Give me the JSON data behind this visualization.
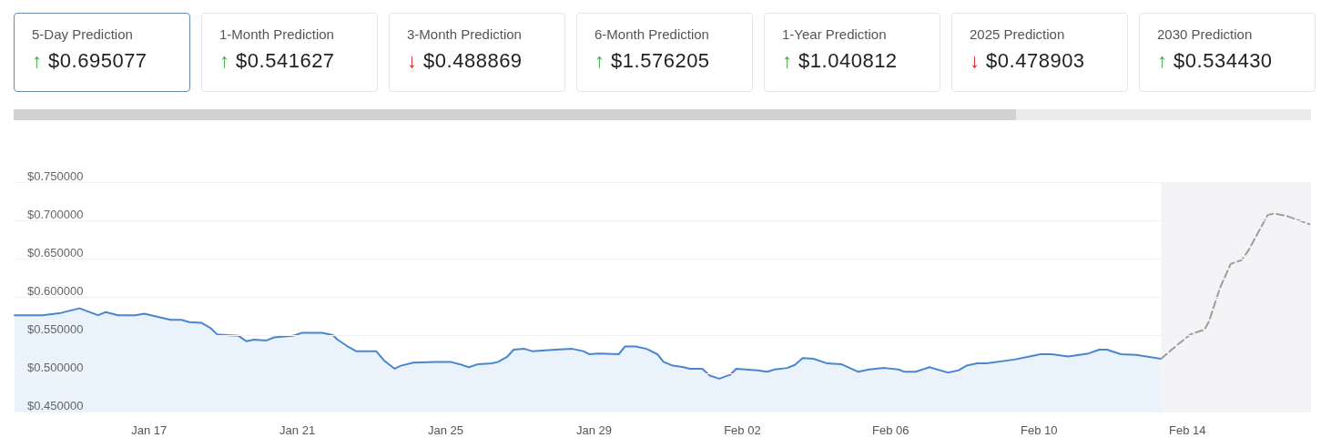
{
  "chart_data": [
    {
      "type": "other",
      "annotations": [
        "5-Day Prediction",
        "↑ $0.695077",
        "1-Month Prediction",
        "↑ $0.541627",
        "3-Month Prediction",
        "↓ $0.488869",
        "6-Month Prediction",
        "↑ $1.576205",
        "1-Year Prediction",
        "↑ $1.040812",
        "2025 Prediction",
        "↓ $0.478903",
        "2030 Prediction",
        "↑ $0.534430"
      ]
    },
    {
      "type": "line",
      "grid": "y",
      "marker": "none",
      "xlim": [
        "--01-13T09:00",
        "--02-17T08:00"
      ],
      "xticks": [
        {
          "value": "--01-17",
          "label": "Jan 17"
        },
        {
          "value": "--01-21",
          "label": "Jan 21"
        },
        {
          "value": "--01-25",
          "label": "Jan 25"
        },
        {
          "value": "--01-29",
          "label": "Jan 29"
        },
        {
          "value": "--02-02",
          "label": "Feb 02"
        },
        {
          "value": "--02-06",
          "label": "Feb 06"
        },
        {
          "value": "--02-10",
          "label": "Feb 10"
        },
        {
          "value": "--02-14",
          "label": "Feb 14"
        }
      ],
      "ylim": [
        0.45,
        0.75
      ],
      "yticks": [
        {
          "value": 0.45,
          "label": "$0.450000"
        },
        {
          "value": 0.5,
          "label": "$0.500000"
        },
        {
          "value": 0.55,
          "label": "$0.550000"
        },
        {
          "value": 0.6,
          "label": "$0.600000"
        },
        {
          "value": 0.65,
          "label": "$0.650000"
        },
        {
          "value": 0.7,
          "label": "$0.700000"
        },
        {
          "value": 0.75,
          "label": "$0.750000"
        }
      ],
      "bands": [
        {
          "axis": "x",
          "from": "--02-13T07:00",
          "to": "--02-17T08:00",
          "color": "#f4f4f6"
        }
      ],
      "series": [
        {
          "type": "area",
          "color": "#4a86d0",
          "line_style": "solid",
          "x": [
            "--01-13T09:00",
            "--01-14T03:00",
            "--01-14T15:00",
            "--01-15T03:00",
            "--01-15T15:00",
            "--01-15T20:00",
            "--01-16T04:00",
            "--01-16T15:00",
            "--01-16T21:00",
            "--01-17T14:00",
            "--01-17T21:00",
            "--01-18T02:00",
            "--01-18T10:00",
            "--01-18T16:00",
            "--01-18T20:00",
            "--01-19T10:00",
            "--01-19T15:00",
            "--01-19T20:00",
            "--01-20T04:00",
            "--01-20T09:00",
            "--01-20T21:00",
            "--01-21T03:00",
            "--01-21T16:00",
            "--01-21T23:00",
            "--01-22T02:00",
            "--01-22T08:00",
            "--01-22T14:00",
            "--01-23T03:00",
            "--01-23T08:00",
            "--01-23T15:00",
            "--01-23T19:00",
            "--01-24T03:00",
            "--01-24T17:00",
            "--01-25T03:00",
            "--01-25T09:00",
            "--01-25T15:00",
            "--01-25T21:00",
            "--01-26T06:00",
            "--01-26T10:00",
            "--01-26T16:00",
            "--01-26T20:00",
            "--01-27T03:00",
            "--01-27T08:00",
            "--01-27T23:00",
            "--01-28T10:00",
            "--01-28T17:00",
            "--01-28T21:00",
            "--01-29T03:00",
            "--01-29T16:00",
            "--01-29T20:00",
            "--01-30T03:00",
            "--01-30T10:00",
            "--01-30T17:00",
            "--01-30T21:00",
            "--01-31T03:00",
            "--01-31T10:00",
            "--01-31T14:00",
            "--01-31T22:00",
            "--02-01T03:00",
            "--02-01T09:00",
            "--02-01T16:00",
            "--02-01T20:00",
            "--02-02T10:00",
            "--02-02T16:00",
            "--02-02T21:00",
            "--02-03T05:00",
            "--02-03T10:00",
            "--02-03T15:00",
            "--02-03T22:00",
            "--02-04T07:00",
            "--02-04T16:00",
            "--02-05T03:00",
            "--02-05T10:00",
            "--02-05T20:00",
            "--02-06T05:00",
            "--02-06T09:00",
            "--02-06T16:00",
            "--02-07T01:00",
            "--02-07T13:00",
            "--02-07T20:00",
            "--02-08T01:00",
            "--02-08T08:00",
            "--02-08T14:00",
            "--02-09T08:00",
            "--02-09T20:00",
            "--02-10T01:00",
            "--02-10T08:00",
            "--02-10T19:00",
            "--02-11T08:00",
            "--02-11T15:00",
            "--02-11T20:00",
            "--02-12T05:00",
            "--02-12T15:00",
            "--02-13T07:00"
          ],
          "values": [
            0.576,
            0.576,
            0.579,
            0.585,
            0.576,
            0.58,
            0.576,
            0.576,
            0.578,
            0.57,
            0.57,
            0.567,
            0.566,
            0.559,
            0.551,
            0.549,
            0.542,
            0.544,
            0.543,
            0.547,
            0.549,
            0.553,
            0.553,
            0.55,
            0.544,
            0.536,
            0.529,
            0.529,
            0.517,
            0.506,
            0.51,
            0.514,
            0.515,
            0.515,
            0.512,
            0.508,
            0.512,
            0.513,
            0.515,
            0.522,
            0.531,
            0.532,
            0.529,
            0.531,
            0.532,
            0.529,
            0.525,
            0.526,
            0.525,
            0.535,
            0.535,
            0.532,
            0.525,
            0.515,
            0.51,
            0.508,
            0.506,
            0.506,
            0.497,
            0.493,
            0.498,
            0.506,
            0.504,
            0.502,
            0.505,
            0.507,
            0.511,
            0.52,
            0.519,
            0.513,
            0.512,
            0.502,
            0.505,
            0.507,
            0.505,
            0.502,
            0.502,
            0.508,
            0.501,
            0.504,
            0.51,
            0.513,
            0.513,
            0.518,
            0.523,
            0.525,
            0.525,
            0.522,
            0.526,
            0.531,
            0.531,
            0.525,
            0.524,
            0.519
          ]
        },
        {
          "type": "line",
          "color": "#9e9e9e",
          "line_style": "dashed",
          "x": [
            "--02-13T07:00",
            "--02-13T18:00",
            "--02-14T02:00",
            "--02-14T11:00",
            "--02-14T14:00",
            "--02-14T21:00",
            "--02-15T04:00",
            "--02-15T11:00",
            "--02-15T15:00",
            "--02-16T04:00",
            "--02-16T08:00",
            "--02-16T16:00",
            "--02-17T07:00"
          ],
          "values": [
            0.519,
            0.538,
            0.551,
            0.557,
            0.568,
            0.611,
            0.643,
            0.648,
            0.659,
            0.707,
            0.709,
            0.706,
            0.695
          ]
        }
      ]
    }
  ]
}
